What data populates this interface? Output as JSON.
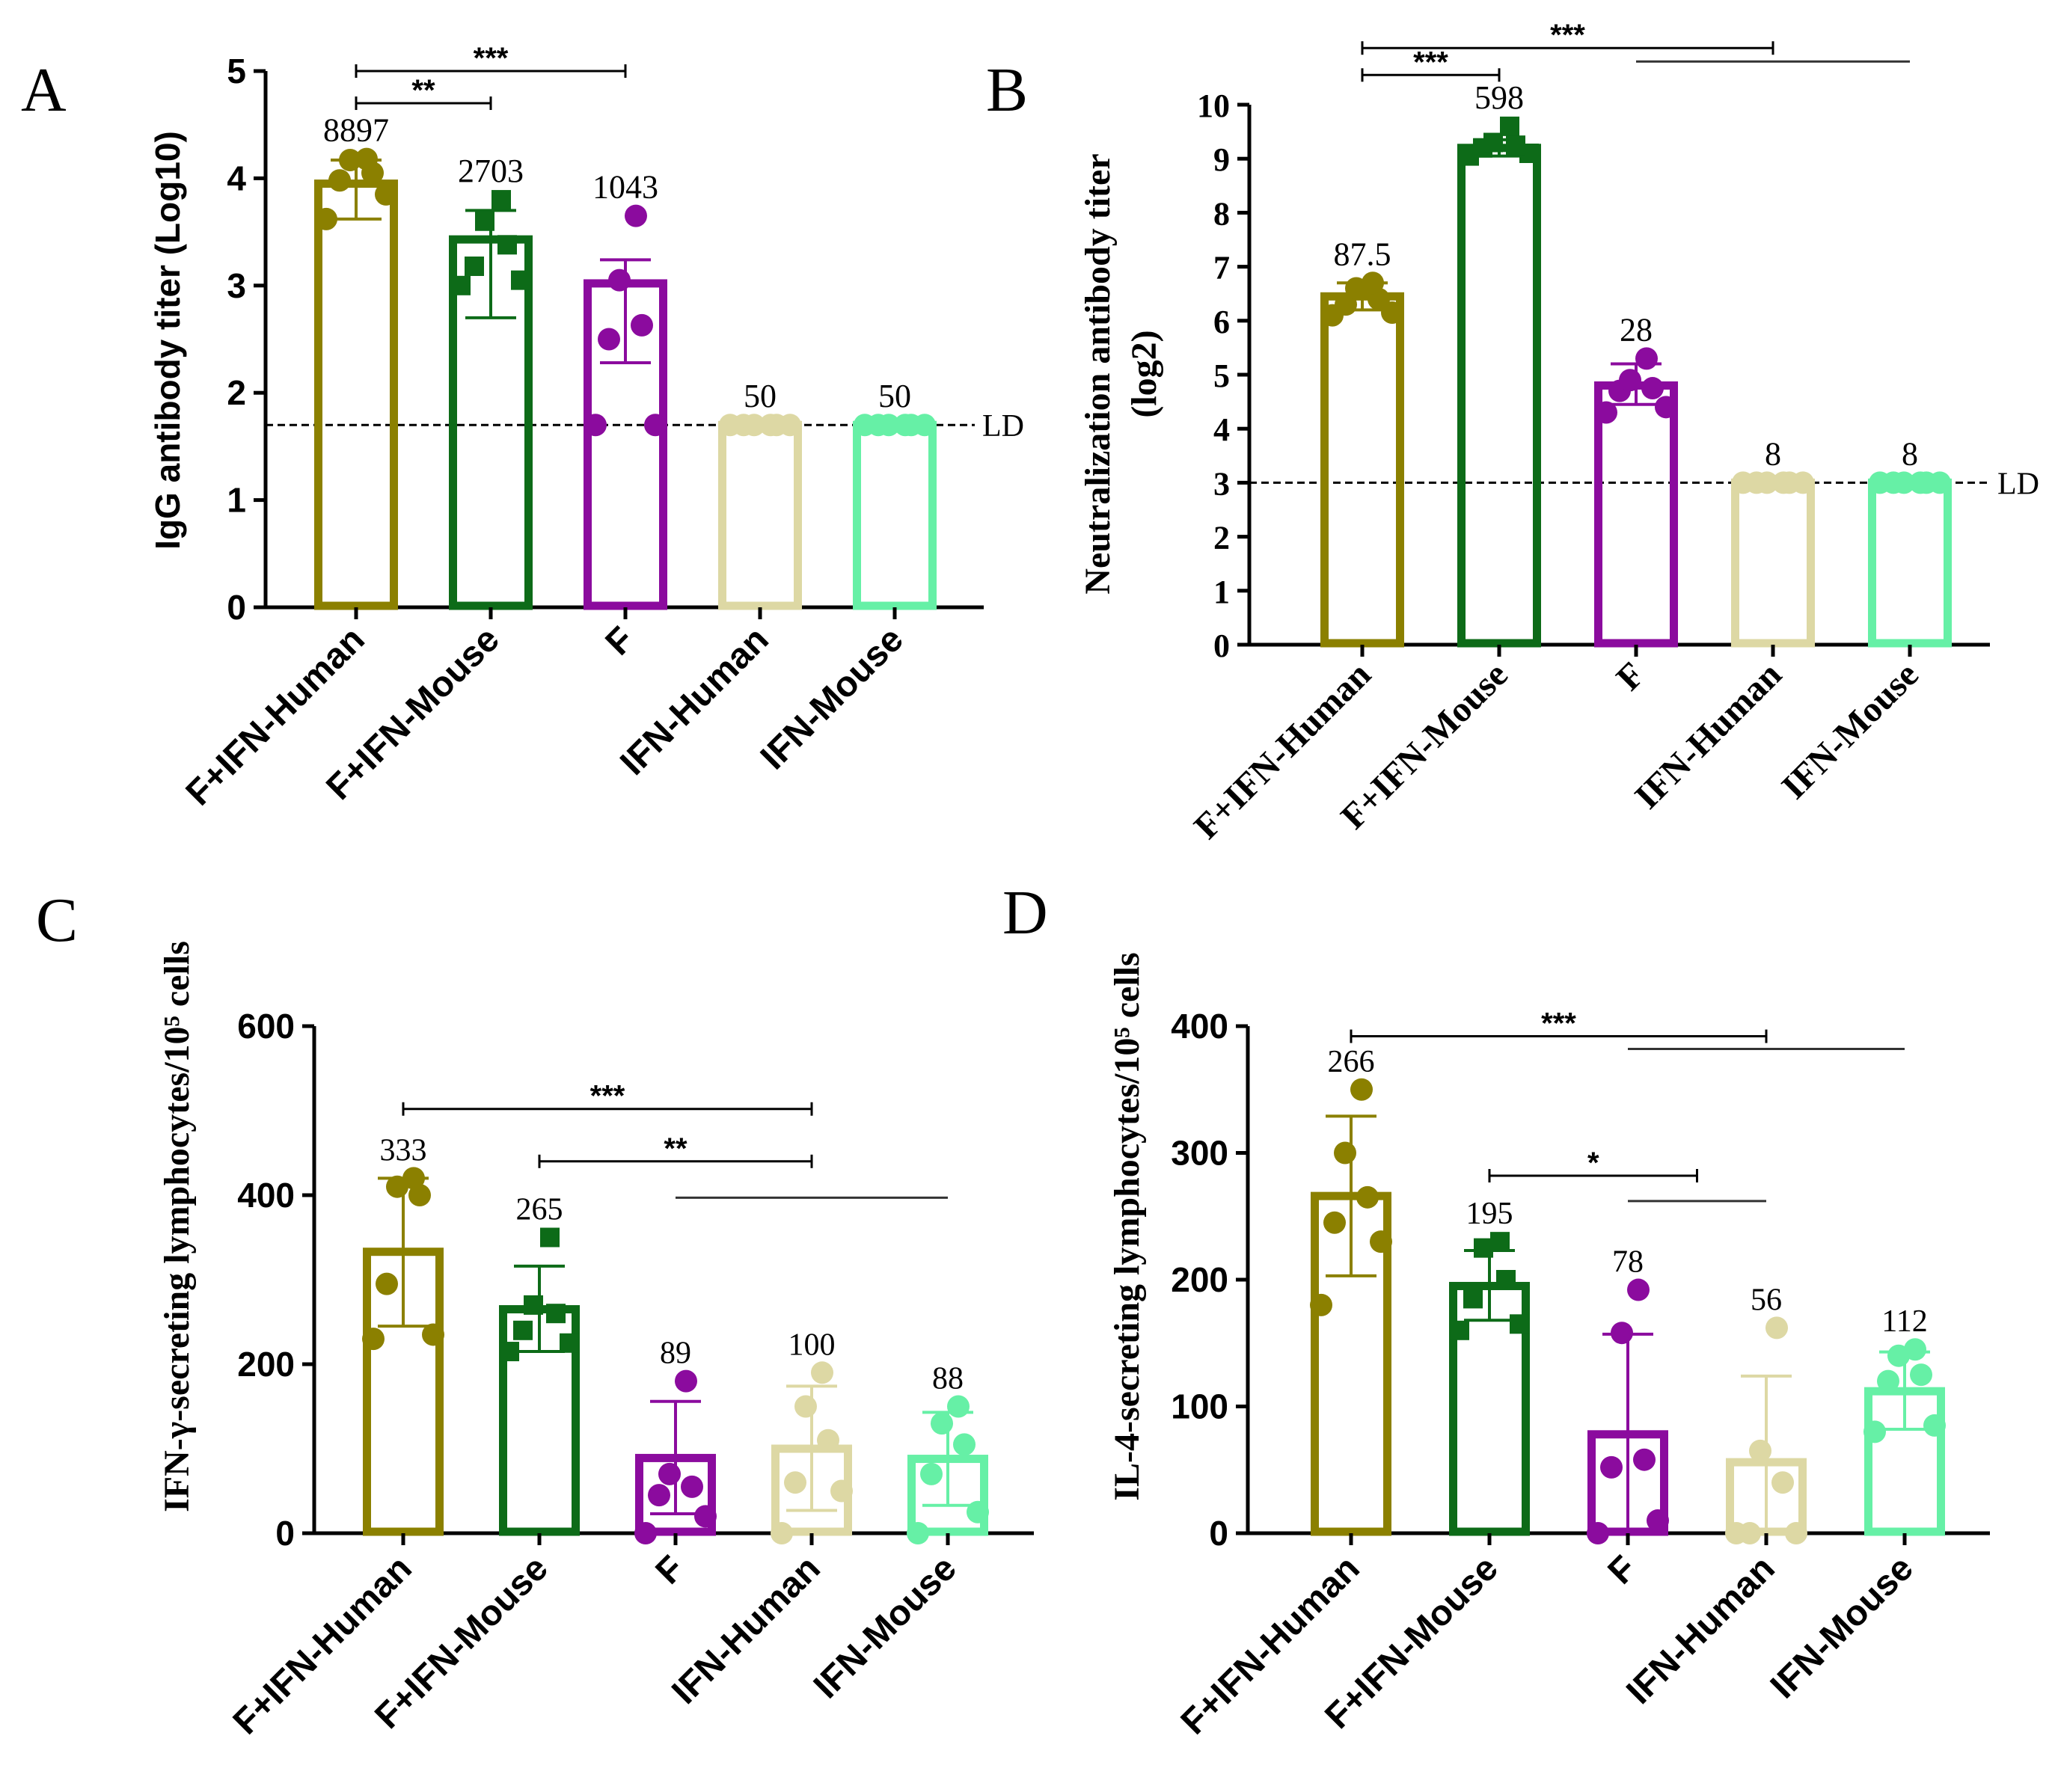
{
  "chart_data": [
    {
      "panel": "A",
      "type": "bar",
      "ylabel": "IgG antibody titer (Log10)",
      "ylabel_lines": [],
      "ylim": [
        0,
        5
      ],
      "yticks": [
        "0",
        "1",
        "2",
        "3",
        "4",
        "5"
      ],
      "categories": [
        "F+IFN-Human",
        "F+IFN-Mouse",
        "F",
        "IFN-Human",
        "IFN-Mouse"
      ],
      "colors": [
        "#8b8000",
        "#0d6b18",
        "#8b0b9e",
        "#ddd8a4",
        "#66f0a6"
      ],
      "values": [
        3.95,
        3.43,
        3.02,
        1.7,
        1.7
      ],
      "error_low": [
        3.62,
        2.7,
        2.28,
        1.7,
        1.7
      ],
      "error_high": [
        4.17,
        3.7,
        3.24,
        1.7,
        1.7
      ],
      "value_labels": [
        "8897",
        "2703",
        "1043",
        "50",
        "50"
      ],
      "points": [
        [
          3.62,
          3.85,
          3.98,
          4.05,
          4.17,
          4.18
        ],
        [
          3.0,
          3.05,
          3.18,
          3.38,
          3.6,
          3.8
        ],
        [
          1.7,
          1.7,
          2.5,
          2.63,
          3.05,
          3.65
        ],
        [
          1.7,
          1.7,
          1.7,
          1.7,
          1.7,
          1.7
        ],
        [
          1.7,
          1.7,
          1.7,
          1.7,
          1.7,
          1.7
        ]
      ],
      "markers": [
        "circle",
        "square",
        "circle",
        "circle",
        "circle"
      ],
      "reference_line": {
        "value": 1.7,
        "label": "LD"
      },
      "significance": [
        {
          "from": 0,
          "to": 2,
          "label": "***",
          "y": 5.0
        },
        {
          "from": 0,
          "to": 1,
          "label": "**",
          "y": 4.7
        }
      ],
      "extra_lines": []
    },
    {
      "panel": "B",
      "type": "bar",
      "ylabel": "",
      "ylabel_lines": [
        "Neutralization antibody titer",
        "(log2)"
      ],
      "ylim": [
        0,
        10
      ],
      "yticks": [
        "0",
        "1",
        "2",
        "3",
        "4",
        "5",
        "6",
        "7",
        "8",
        "9",
        "10"
      ],
      "categories": [
        "F+IFN-Human",
        "F+IFN-Mouse",
        "F",
        "IFN-Human",
        "IFN-Mouse"
      ],
      "colors": [
        "#8b8000",
        "#0d6b18",
        "#8b0b9e",
        "#ddd8a4",
        "#66f0a6"
      ],
      "values": [
        6.45,
        9.2,
        4.8,
        3.0,
        3.0
      ],
      "error_low": [
        6.2,
        9.05,
        4.45,
        3.0,
        3.0
      ],
      "error_high": [
        6.7,
        9.35,
        5.2,
        3.0,
        3.0
      ],
      "value_labels": [
        "87.5",
        "598",
        "28",
        "8",
        "8"
      ],
      "points": [
        [
          6.1,
          6.15,
          6.3,
          6.4,
          6.6,
          6.7
        ],
        [
          9.05,
          9.1,
          9.2,
          9.25,
          9.3,
          9.6
        ],
        [
          4.3,
          4.4,
          4.7,
          4.75,
          4.9,
          5.3
        ],
        [
          3.0,
          3.0,
          3.0,
          3.0,
          3.0,
          3.0
        ],
        [
          3.0,
          3.0,
          3.0,
          3.0,
          3.0,
          3.0
        ]
      ],
      "markers": [
        "circle",
        "square",
        "circle",
        "circle",
        "circle"
      ],
      "reference_line": {
        "value": 3.0,
        "label": "LD"
      },
      "significance": [
        {
          "from": 0,
          "to": 3,
          "label": "***",
          "y": 11.05
        },
        {
          "from": 0,
          "to": 1,
          "label": "***",
          "y": 10.55
        }
      ],
      "extra_lines": [
        {
          "from": 2,
          "to": 4,
          "y": 10.8
        }
      ]
    },
    {
      "panel": "C",
      "type": "bar",
      "ylabel": "IFN-γ-secreting lymphocytes/10⁵ cells",
      "ylabel_lines": [],
      "ylim": [
        0,
        600
      ],
      "yticks": [
        "0",
        "200",
        "400",
        "600"
      ],
      "categories": [
        "F+IFN-Human",
        "F+IFN-Mouse",
        "F",
        "IFN-Human",
        "IFN-Mouse"
      ],
      "colors": [
        "#8b8000",
        "#0d6b18",
        "#8b0b9e",
        "#ddd8a4",
        "#66f0a6"
      ],
      "values": [
        333,
        265,
        89,
        100,
        88
      ],
      "error_low": [
        245,
        215,
        23,
        27,
        33
      ],
      "error_high": [
        420,
        316,
        156,
        174,
        143
      ],
      "value_labels": [
        "333",
        "265",
        "89",
        "100",
        "88"
      ],
      "points": [
        [
          230,
          235,
          295,
          400,
          410,
          420
        ],
        [
          215,
          225,
          240,
          260,
          270,
          350
        ],
        [
          0,
          20,
          45,
          55,
          70,
          180
        ],
        [
          0,
          50,
          60,
          110,
          150,
          190
        ],
        [
          0,
          25,
          70,
          105,
          130,
          150
        ]
      ],
      "markers": [
        "circle",
        "square",
        "circle",
        "circle",
        "circle"
      ],
      "reference_line": null,
      "significance": [
        {
          "from": 0,
          "to": 3,
          "label": "***",
          "y": 502
        },
        {
          "from": 1,
          "to": 3,
          "label": "**",
          "y": 440
        }
      ],
      "extra_lines": [
        {
          "from": 2,
          "to": 4,
          "y": 397
        }
      ]
    },
    {
      "panel": "D",
      "type": "bar",
      "ylabel": "IL-4-secreting lymphocytes/10⁵ cells",
      "ylabel_lines": [],
      "ylim": [
        0,
        400
      ],
      "yticks": [
        "0",
        "100",
        "200",
        "300",
        "400"
      ],
      "categories": [
        "F+IFN-Human",
        "F+IFN-Mouse",
        "F",
        "IFN-Human",
        "IFN-Mouse"
      ],
      "colors": [
        "#8b8000",
        "#0d6b18",
        "#8b0b9e",
        "#ddd8a4",
        "#66f0a6"
      ],
      "values": [
        266,
        195,
        78,
        56,
        112
      ],
      "error_low": [
        203,
        168,
        0,
        0,
        82
      ],
      "error_high": [
        329,
        223,
        157,
        124,
        143
      ],
      "value_labels": [
        "266",
        "195",
        "78",
        "56",
        "112"
      ],
      "points": [
        [
          180,
          230,
          245,
          265,
          300,
          350
        ],
        [
          160,
          165,
          185,
          200,
          225,
          230
        ],
        [
          0,
          10,
          52,
          58,
          158,
          192
        ],
        [
          0,
          0,
          0,
          40,
          65,
          162
        ],
        [
          80,
          85,
          120,
          125,
          140,
          145
        ]
      ],
      "markers": [
        "circle",
        "square",
        "circle",
        "circle",
        "circle"
      ],
      "reference_line": null,
      "significance": [
        {
          "from": 0,
          "to": 3,
          "label": "***",
          "y": 392
        },
        {
          "from": 1,
          "to": 2.5,
          "label": "*",
          "y": 282
        }
      ],
      "extra_lines": [
        {
          "from": 2,
          "to": 4,
          "y": 382
        },
        {
          "from": 2,
          "to": 3,
          "y": 262
        }
      ]
    }
  ]
}
